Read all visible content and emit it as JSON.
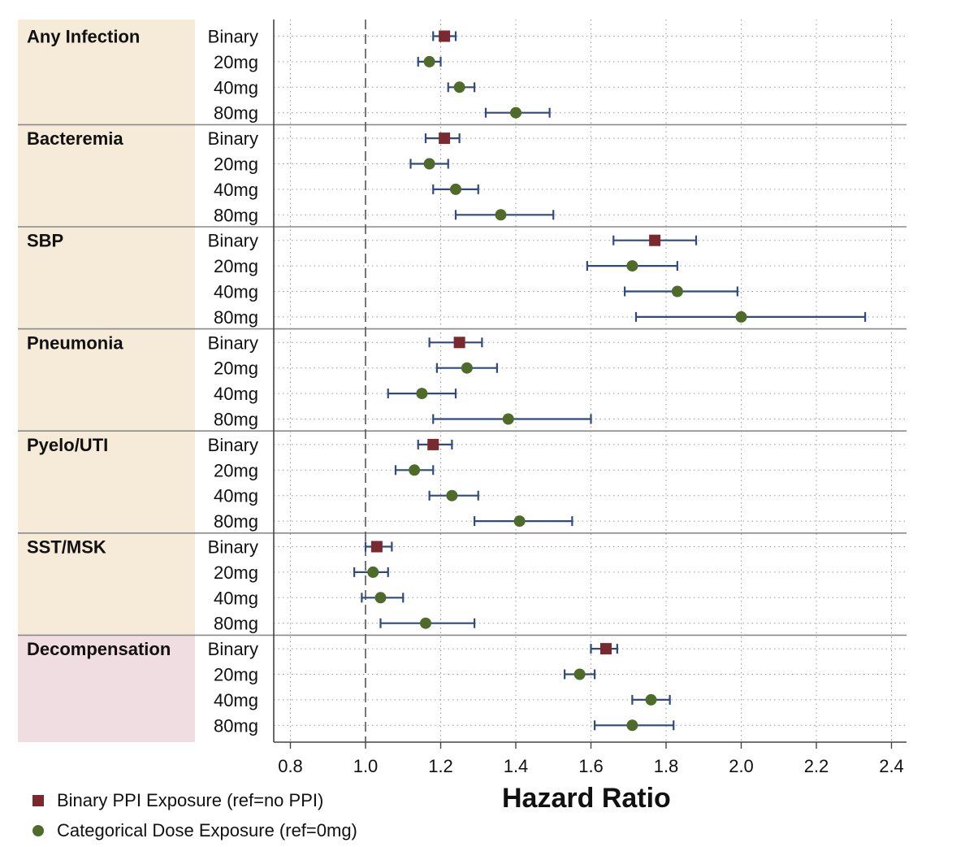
{
  "chart_data": {
    "type": "scatter",
    "subtype": "forest-plot",
    "xlabel": "Hazard Ratio",
    "xlim": [
      0.75,
      2.45
    ],
    "xticks": [
      "0.8",
      "1.0",
      "1.2",
      "1.4",
      "1.6",
      "1.8",
      "2.0",
      "2.2",
      "2.4"
    ],
    "reference_line": 1.0,
    "grid": true,
    "legend_position": "bottom-left",
    "colors": {
      "binary": "#7a2a2e",
      "dose": "#4f6b2a",
      "ci": "#2f4a7e",
      "group_bg": "#f6ebd9",
      "decomp_bg": "#f0dde2"
    },
    "legend": [
      {
        "key": "binary",
        "label": "Binary PPI Exposure (ref=no PPI)"
      },
      {
        "key": "dose",
        "label": "Categorical Dose Exposure (ref=0mg)"
      }
    ],
    "groups": [
      {
        "name": "Any Infection",
        "highlight": false,
        "rows": [
          {
            "label": "Binary",
            "kind": "binary",
            "hr": 1.21,
            "lo": 1.18,
            "hi": 1.24
          },
          {
            "label": "20mg",
            "kind": "dose",
            "hr": 1.17,
            "lo": 1.14,
            "hi": 1.2
          },
          {
            "label": "40mg",
            "kind": "dose",
            "hr": 1.25,
            "lo": 1.22,
            "hi": 1.29
          },
          {
            "label": "80mg",
            "kind": "dose",
            "hr": 1.4,
            "lo": 1.32,
            "hi": 1.49
          }
        ]
      },
      {
        "name": "Bacteremia",
        "highlight": false,
        "rows": [
          {
            "label": "Binary",
            "kind": "binary",
            "hr": 1.21,
            "lo": 1.16,
            "hi": 1.25
          },
          {
            "label": "20mg",
            "kind": "dose",
            "hr": 1.17,
            "lo": 1.12,
            "hi": 1.22
          },
          {
            "label": "40mg",
            "kind": "dose",
            "hr": 1.24,
            "lo": 1.18,
            "hi": 1.3
          },
          {
            "label": "80mg",
            "kind": "dose",
            "hr": 1.36,
            "lo": 1.24,
            "hi": 1.5
          }
        ]
      },
      {
        "name": "SBP",
        "highlight": false,
        "rows": [
          {
            "label": "Binary",
            "kind": "binary",
            "hr": 1.77,
            "lo": 1.66,
            "hi": 1.88
          },
          {
            "label": "20mg",
            "kind": "dose",
            "hr": 1.71,
            "lo": 1.59,
            "hi": 1.83
          },
          {
            "label": "40mg",
            "kind": "dose",
            "hr": 1.83,
            "lo": 1.69,
            "hi": 1.99
          },
          {
            "label": "80mg",
            "kind": "dose",
            "hr": 2.0,
            "lo": 1.72,
            "hi": 2.33
          }
        ]
      },
      {
        "name": "Pneumonia",
        "highlight": false,
        "rows": [
          {
            "label": "Binary",
            "kind": "binary",
            "hr": 1.25,
            "lo": 1.17,
            "hi": 1.31
          },
          {
            "label": "20mg",
            "kind": "dose",
            "hr": 1.27,
            "lo": 1.19,
            "hi": 1.35
          },
          {
            "label": "40mg",
            "kind": "dose",
            "hr": 1.15,
            "lo": 1.06,
            "hi": 1.24
          },
          {
            "label": "80mg",
            "kind": "dose",
            "hr": 1.38,
            "lo": 1.18,
            "hi": 1.6
          }
        ]
      },
      {
        "name": "Pyelo/UTI",
        "highlight": false,
        "rows": [
          {
            "label": "Binary",
            "kind": "binary",
            "hr": 1.18,
            "lo": 1.14,
            "hi": 1.23
          },
          {
            "label": "20mg",
            "kind": "dose",
            "hr": 1.13,
            "lo": 1.08,
            "hi": 1.18
          },
          {
            "label": "40mg",
            "kind": "dose",
            "hr": 1.23,
            "lo": 1.17,
            "hi": 1.3
          },
          {
            "label": "80mg",
            "kind": "dose",
            "hr": 1.41,
            "lo": 1.29,
            "hi": 1.55
          }
        ]
      },
      {
        "name": "SST/MSK",
        "highlight": false,
        "rows": [
          {
            "label": "Binary",
            "kind": "binary",
            "hr": 1.03,
            "lo": 1.0,
            "hi": 1.07
          },
          {
            "label": "20mg",
            "kind": "dose",
            "hr": 1.02,
            "lo": 0.97,
            "hi": 1.06
          },
          {
            "label": "40mg",
            "kind": "dose",
            "hr": 1.04,
            "lo": 0.99,
            "hi": 1.1
          },
          {
            "label": "80mg",
            "kind": "dose",
            "hr": 1.16,
            "lo": 1.04,
            "hi": 1.29
          }
        ]
      },
      {
        "name": "Decompensation",
        "highlight": true,
        "rows": [
          {
            "label": "Binary",
            "kind": "binary",
            "hr": 1.64,
            "lo": 1.6,
            "hi": 1.67
          },
          {
            "label": "20mg",
            "kind": "dose",
            "hr": 1.57,
            "lo": 1.53,
            "hi": 1.61
          },
          {
            "label": "40mg",
            "kind": "dose",
            "hr": 1.76,
            "lo": 1.71,
            "hi": 1.81
          },
          {
            "label": "80mg",
            "kind": "dose",
            "hr": 1.71,
            "lo": 1.61,
            "hi": 1.82
          }
        ]
      }
    ]
  }
}
